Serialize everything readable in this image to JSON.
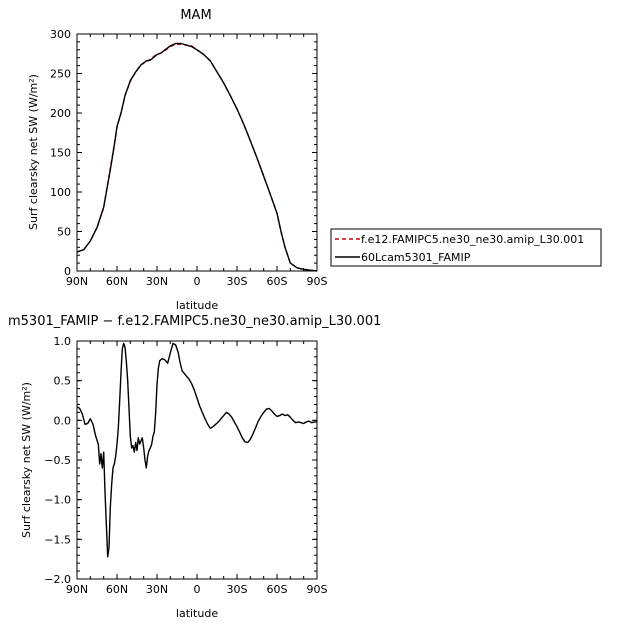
{
  "chart_data": [
    {
      "type": "line",
      "title": "MAM",
      "xlabel": "latitude",
      "ylabel": "Surf clearsky net SW (W/m²)",
      "xlim": [
        90,
        -90
      ],
      "ylim": [
        0,
        300
      ],
      "xticks": [
        90,
        60,
        30,
        0,
        -30,
        -60,
        -90
      ],
      "xtick_labels": [
        "90N",
        "60N",
        "30N",
        "0",
        "30S",
        "60S",
        "90S"
      ],
      "yticks": [
        0,
        50,
        100,
        150,
        200,
        250,
        300
      ],
      "ytick_labels": [
        "0",
        "50",
        "100",
        "150",
        "200",
        "250",
        "300"
      ],
      "legend_position": "right",
      "series": [
        {
          "name": "f.e12.FAMIPC5.ne30_ne30.amip_L30.001",
          "color": "#cc0000",
          "dash": "dashed",
          "x": [
            90,
            85,
            80,
            75,
            70,
            65,
            62,
            60,
            57,
            54,
            50,
            46,
            42,
            38,
            35,
            32,
            30,
            27,
            24,
            20,
            16,
            12,
            8,
            4,
            0,
            -5,
            -10,
            -15,
            -20,
            -25,
            -30,
            -35,
            -40,
            -45,
            -50,
            -55,
            -60,
            -63,
            -66,
            -70,
            -75,
            -80,
            -85,
            -90
          ],
          "y": [
            24,
            27,
            38,
            55,
            80,
            130,
            160,
            182,
            200,
            222,
            240,
            252,
            261,
            265,
            268,
            272,
            274,
            276,
            279,
            284,
            287,
            287,
            286,
            285,
            280,
            274,
            266,
            252,
            238,
            222,
            205,
            186,
            165,
            143,
            120,
            97,
            73,
            50,
            30,
            10,
            4,
            2,
            1,
            0
          ]
        },
        {
          "name": "60Lcam5301_FAMIP",
          "color": "#000000",
          "dash": "solid",
          "x": [
            90,
            85,
            80,
            75,
            70,
            65,
            62,
            60,
            57,
            54,
            50,
            46,
            42,
            38,
            35,
            32,
            30,
            27,
            24,
            20,
            16,
            12,
            8,
            4,
            0,
            -5,
            -10,
            -15,
            -20,
            -25,
            -30,
            -35,
            -40,
            -45,
            -50,
            -55,
            -60,
            -63,
            -66,
            -70,
            -75,
            -80,
            -85,
            -90
          ],
          "y": [
            24,
            27,
            38,
            55,
            81,
            128,
            159,
            183,
            200,
            222,
            241,
            252,
            261,
            266,
            267,
            271,
            274,
            276,
            280,
            285,
            288,
            288,
            286,
            284,
            280,
            274,
            266,
            252,
            238,
            222,
            205,
            186,
            165,
            143,
            120,
            97,
            73,
            50,
            30,
            10,
            4,
            2,
            1,
            0
          ]
        }
      ]
    },
    {
      "type": "line",
      "title": "m5301_FAMIP − f.e12.FAMIPC5.ne30_ne30.amip_L30.001",
      "xlabel": "latitude",
      "ylabel": "Surf clearsky net SW (W/m²)",
      "xlim": [
        90,
        -90
      ],
      "ylim": [
        -2.0,
        1.0
      ],
      "xticks": [
        90,
        60,
        30,
        0,
        -30,
        -60,
        -90
      ],
      "xtick_labels": [
        "90N",
        "60N",
        "30N",
        "0",
        "30S",
        "60S",
        "90S"
      ],
      "yticks": [
        -2.0,
        -1.5,
        -1.0,
        -0.5,
        0.0,
        0.5,
        1.0
      ],
      "ytick_labels": [
        "−2.0",
        "−1.5",
        "−1.0",
        "−0.5",
        "0.0",
        "0.5",
        "1.0"
      ],
      "series": [
        {
          "color": "#000000",
          "dash": "solid",
          "x": [
            90,
            88,
            86,
            84,
            82,
            80,
            78,
            76,
            74,
            73,
            72,
            71,
            70,
            69,
            68,
            67,
            66,
            65,
            64,
            63,
            62,
            61,
            60,
            59,
            58,
            57,
            56,
            55,
            54,
            53,
            52,
            51,
            50,
            49,
            48,
            47,
            46,
            45,
            44,
            43,
            42,
            41,
            40,
            39,
            38,
            37,
            36,
            35,
            34,
            33,
            32,
            31,
            30,
            29,
            28,
            26,
            24,
            22,
            20,
            18,
            16,
            14,
            13,
            12,
            11,
            10,
            8,
            6,
            4,
            2,
            0,
            -2,
            -4,
            -6,
            -8,
            -10,
            -12,
            -14,
            -16,
            -18,
            -20,
            -22,
            -24,
            -26,
            -28,
            -30,
            -32,
            -34,
            -36,
            -38,
            -40,
            -42,
            -44,
            -46,
            -48,
            -50,
            -52,
            -54,
            -56,
            -58,
            -60,
            -62,
            -64,
            -66,
            -68,
            -70,
            -72,
            -74,
            -76,
            -78,
            -80,
            -82,
            -84,
            -86,
            -88,
            -90
          ],
          "y": [
            0.17,
            0.15,
            0.08,
            -0.05,
            -0.04,
            0.02,
            -0.05,
            -0.2,
            -0.3,
            -0.55,
            -0.42,
            -0.6,
            -0.4,
            -0.9,
            -1.3,
            -1.72,
            -1.6,
            -1.1,
            -0.8,
            -0.6,
            -0.55,
            -0.45,
            -0.3,
            -0.1,
            0.25,
            0.6,
            0.9,
            0.97,
            0.92,
            0.75,
            0.5,
            0.15,
            -0.2,
            -0.35,
            -0.32,
            -0.4,
            -0.28,
            -0.38,
            -0.22,
            -0.3,
            -0.26,
            -0.22,
            -0.35,
            -0.5,
            -0.6,
            -0.45,
            -0.38,
            -0.35,
            -0.3,
            -0.2,
            -0.15,
            0.1,
            0.45,
            0.65,
            0.75,
            0.78,
            0.76,
            0.72,
            0.85,
            0.97,
            0.95,
            0.85,
            0.75,
            0.68,
            0.62,
            0.6,
            0.56,
            0.52,
            0.46,
            0.38,
            0.28,
            0.18,
            0.1,
            0.02,
            -0.05,
            -0.1,
            -0.08,
            -0.05,
            -0.02,
            0.02,
            0.06,
            0.1,
            0.08,
            0.04,
            -0.02,
            -0.08,
            -0.15,
            -0.22,
            -0.27,
            -0.28,
            -0.24,
            -0.17,
            -0.09,
            -0.01,
            0.05,
            0.1,
            0.14,
            0.15,
            0.12,
            0.08,
            0.05,
            0.06,
            0.08,
            0.06,
            0.07,
            0.04,
            0.0,
            -0.03,
            -0.02,
            -0.03,
            -0.04,
            -0.02,
            -0.01,
            -0.03,
            -0.02,
            -0.02
          ]
        }
      ]
    }
  ]
}
